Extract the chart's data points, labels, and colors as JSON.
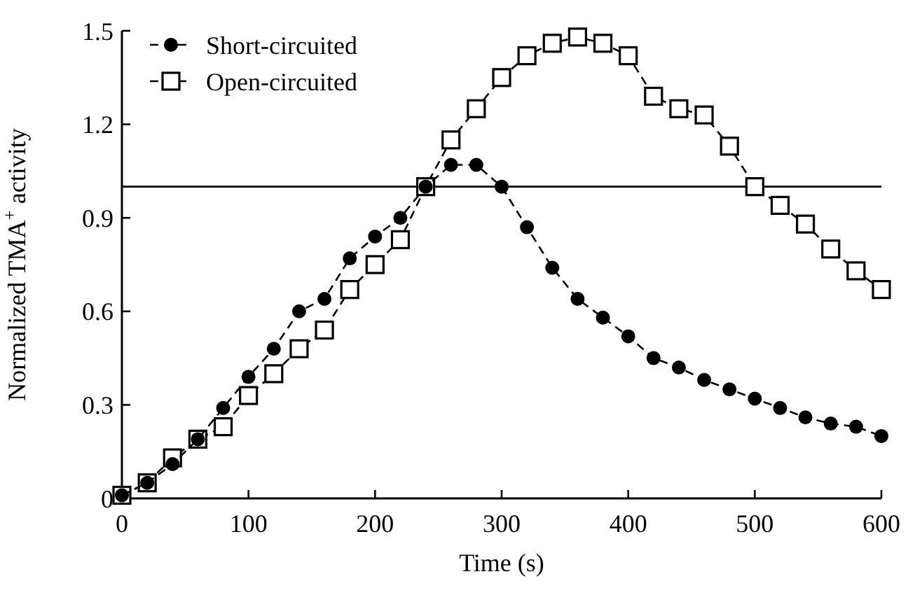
{
  "chart_data": {
    "type": "line",
    "xlabel": "Time (s)",
    "ylabel": "Normalized TMA$^{+}$ activity",
    "x": [
      0,
      20,
      40,
      60,
      80,
      100,
      120,
      140,
      160,
      180,
      200,
      220,
      240,
      260,
      280,
      300,
      320,
      340,
      360,
      380,
      400,
      420,
      440,
      460,
      480,
      500,
      520,
      540,
      560,
      580,
      600
    ],
    "series": [
      {
        "name": "Short-circuited",
        "color": "#000000",
        "marker": "circle",
        "values": [
          0.01,
          0.05,
          0.11,
          0.19,
          0.29,
          0.39,
          0.48,
          0.6,
          0.64,
          0.77,
          0.84,
          0.9,
          1.0,
          1.07,
          1.07,
          1.0,
          0.87,
          0.74,
          0.64,
          0.58,
          0.52,
          0.45,
          0.42,
          0.38,
          0.35,
          0.32,
          0.29,
          0.26,
          0.24,
          0.23,
          0.2
        ]
      },
      {
        "name": "Open-circuited",
        "color": "#000000",
        "marker": "square",
        "values": [
          0.01,
          0.05,
          0.13,
          0.19,
          0.23,
          0.33,
          0.4,
          0.48,
          0.54,
          0.67,
          0.75,
          0.83,
          1.0,
          1.15,
          1.25,
          1.35,
          1.42,
          1.46,
          1.48,
          1.46,
          1.42,
          1.29,
          1.25,
          1.23,
          1.13,
          1.0,
          0.94,
          0.88,
          0.8,
          0.73,
          0.67
        ]
      }
    ],
    "line_style": "dashed",
    "legend": "top left",
    "xlim": [
      0,
      600
    ],
    "xticks": [
      0,
      100,
      200,
      300,
      400,
      500,
      600
    ],
    "ylim": [
      0,
      1.5
    ],
    "yticks": [
      {
        "value": 0,
        "label": "0"
      },
      0.3,
      0.6,
      0.9,
      1.2,
      1.5
    ],
    "ref_lines": [
      {
        "axis": "y",
        "value": 1,
        "color": "#000000"
      }
    ]
  }
}
